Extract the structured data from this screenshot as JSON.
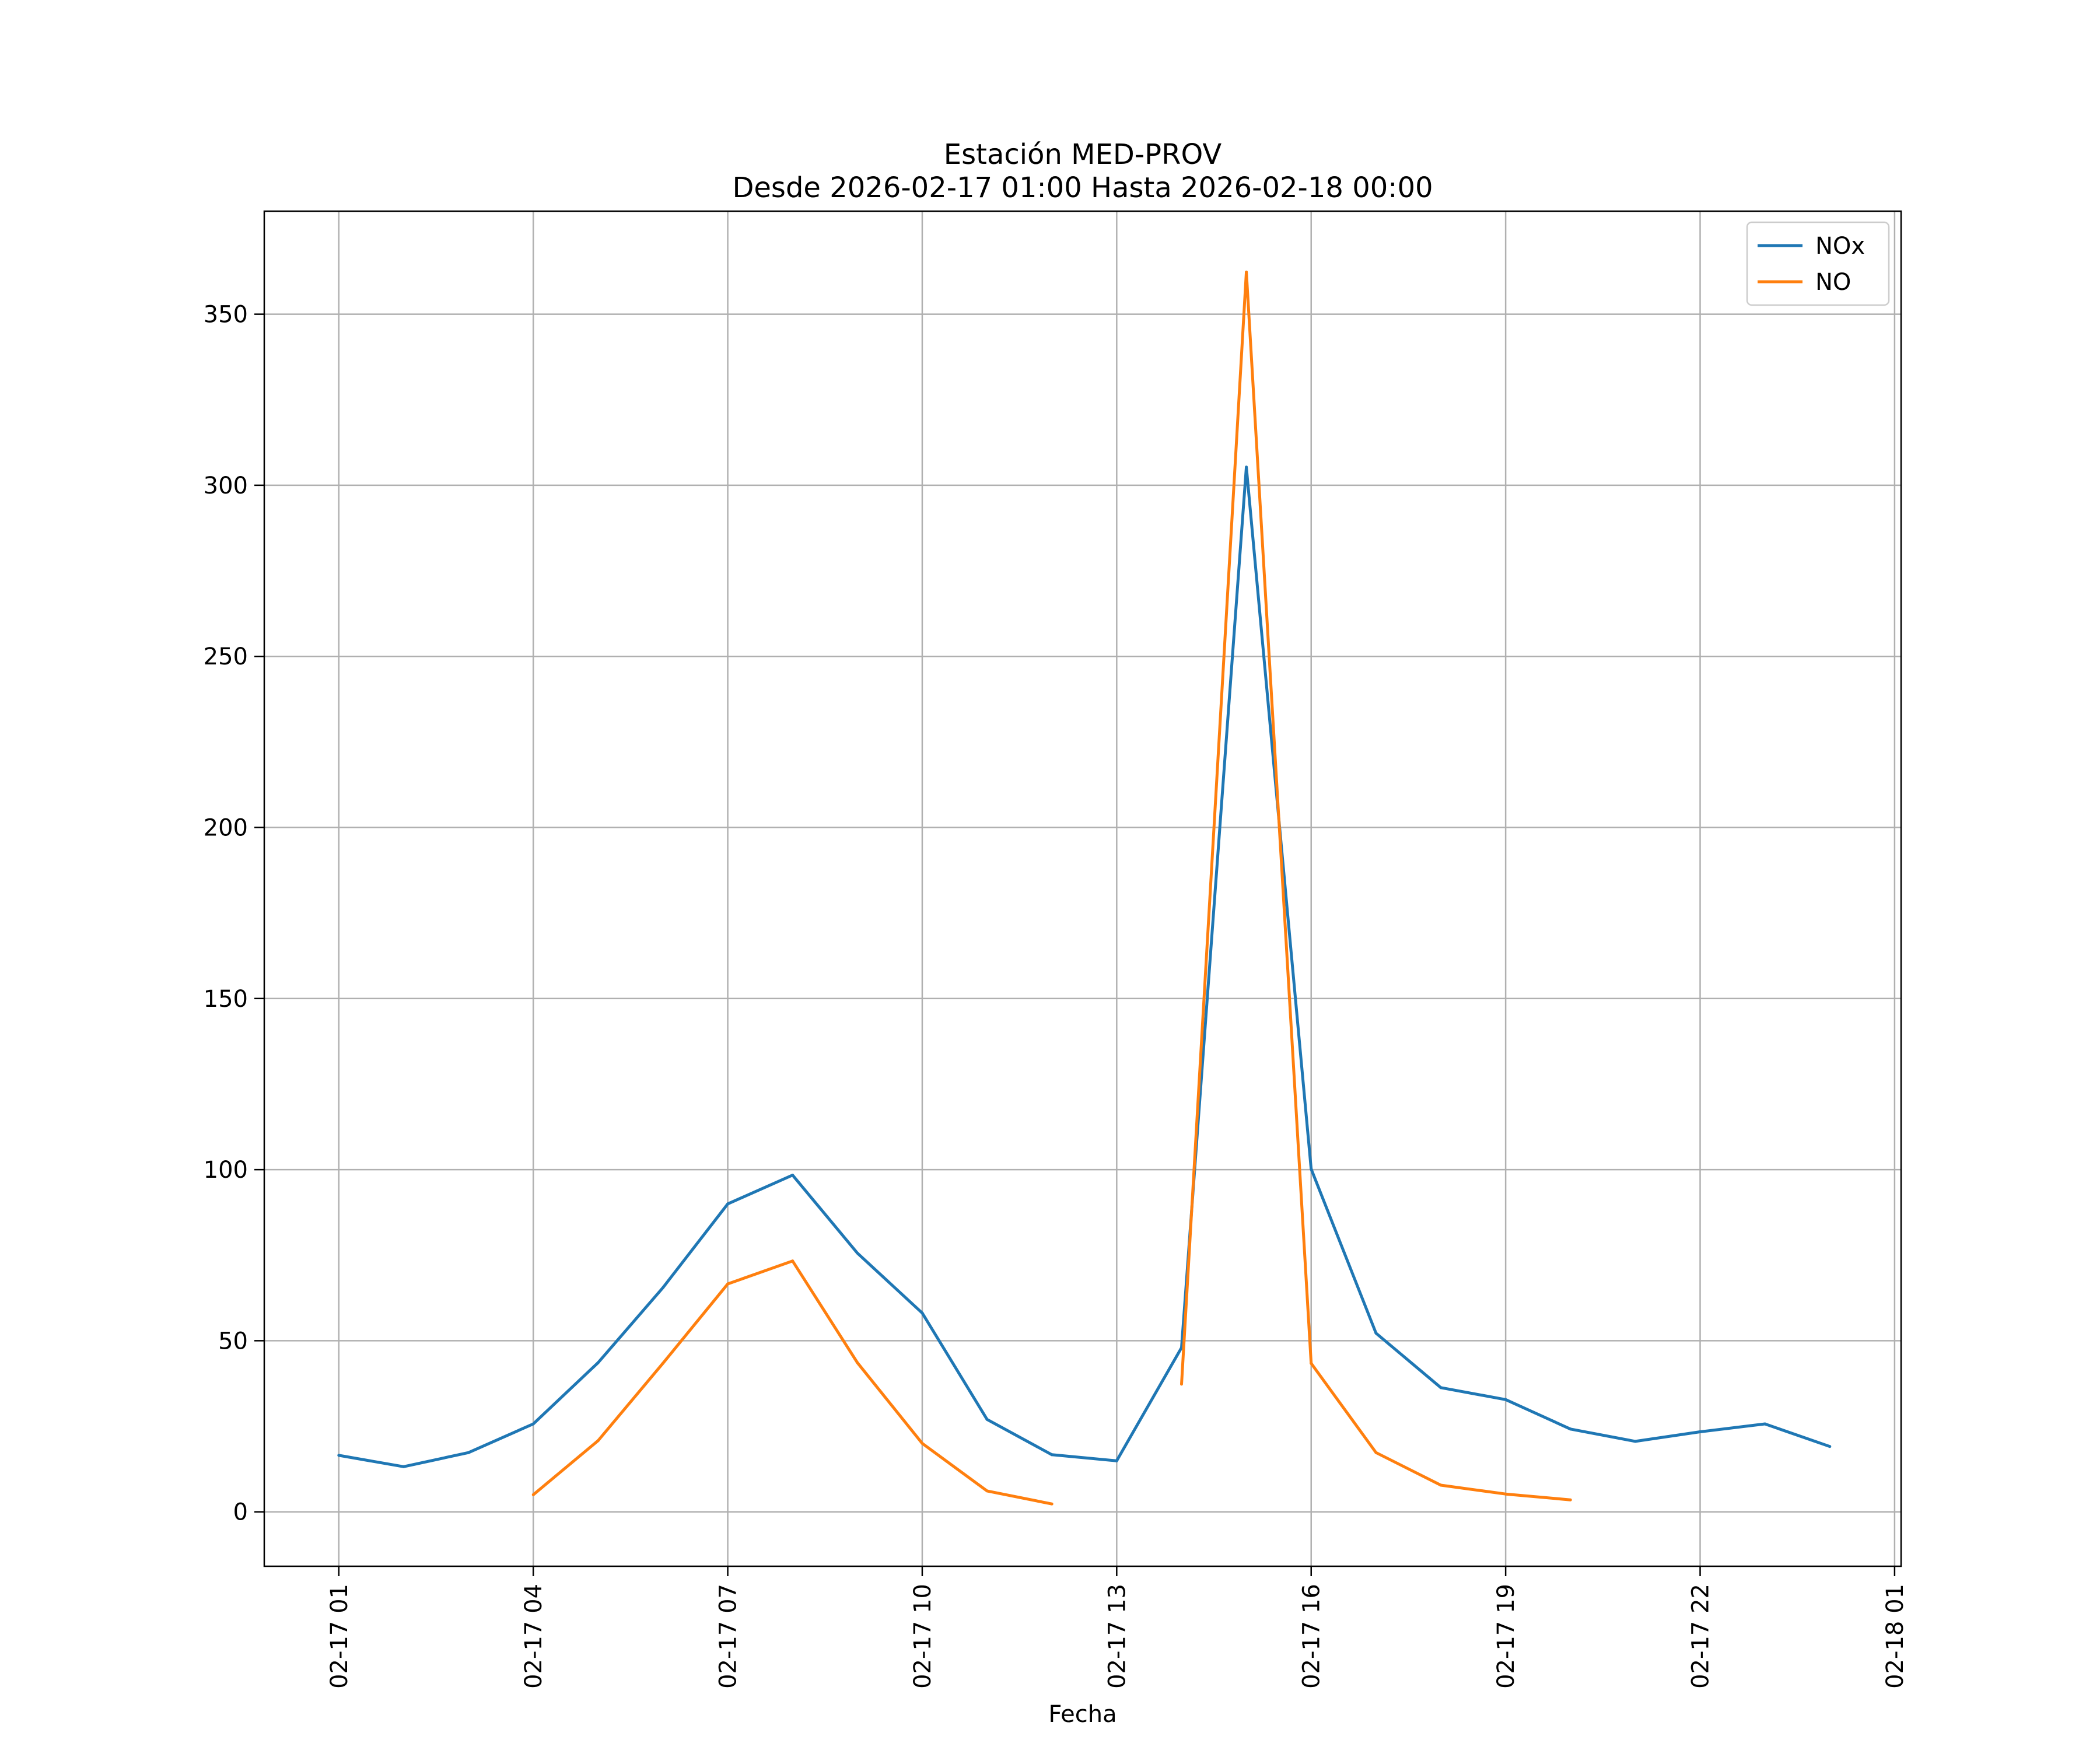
{
  "chart_data": {
    "type": "line",
    "title": "Estación MED-PROV",
    "subtitle": "Desde 2026-02-17 01:00 Hasta 2026-02-18 00:00",
    "xlabel": "Fecha",
    "ylabel": "",
    "x_axis": {
      "type": "datetime",
      "ticks": [
        {
          "x": "2026-02-17 01:00",
          "label": "02-17 01"
        },
        {
          "x": "2026-02-17 04:00",
          "label": "02-17 04"
        },
        {
          "x": "2026-02-17 07:00",
          "label": "02-17 07"
        },
        {
          "x": "2026-02-17 10:00",
          "label": "02-17 10"
        },
        {
          "x": "2026-02-17 13:00",
          "label": "02-17 13"
        },
        {
          "x": "2026-02-17 16:00",
          "label": "02-17 16"
        },
        {
          "x": "2026-02-17 19:00",
          "label": "02-17 19"
        },
        {
          "x": "2026-02-17 22:00",
          "label": "02-17 22"
        },
        {
          "x": "2026-02-18 01:00",
          "label": "02-18 01"
        }
      ],
      "xlim": [
        "2026-02-16 23:51",
        "2026-02-18 01:06"
      ]
    },
    "y_axis": {
      "ticks": [
        0,
        50,
        100,
        150,
        200,
        250,
        300,
        350
      ],
      "ylim": [
        -15.9,
        380.1
      ]
    },
    "grid": true,
    "legend": {
      "placement": "top-right"
    },
    "series": [
      {
        "name": "NOx",
        "color": "#1f77b4",
        "points": [
          [
            "2026-02-17 01:00",
            16.5
          ],
          [
            "2026-02-17 02:00",
            13.2
          ],
          [
            "2026-02-17 03:00",
            17.3
          ],
          [
            "2026-02-17 04:00",
            25.7
          ],
          [
            "2026-02-17 05:00",
            43.6
          ],
          [
            "2026-02-17 06:00",
            65.5
          ],
          [
            "2026-02-17 07:00",
            90.0
          ],
          [
            "2026-02-17 08:00",
            98.4
          ],
          [
            "2026-02-17 09:00",
            75.6
          ],
          [
            "2026-02-17 10:00",
            58.1
          ],
          [
            "2026-02-17 11:00",
            27.0
          ],
          [
            "2026-02-17 12:00",
            16.7
          ],
          [
            "2026-02-17 13:00",
            14.9
          ],
          [
            "2026-02-17 14:00",
            48.0
          ],
          [
            "2026-02-17 15:00",
            305.3
          ],
          [
            "2026-02-17 16:00",
            100.2
          ],
          [
            "2026-02-17 17:00",
            52.2
          ],
          [
            "2026-02-17 18:00",
            36.3
          ],
          [
            "2026-02-17 19:00",
            32.8
          ],
          [
            "2026-02-17 20:00",
            24.2
          ],
          [
            "2026-02-17 21:00",
            20.6
          ],
          [
            "2026-02-17 22:00",
            23.4
          ],
          [
            "2026-02-17 23:00",
            25.7
          ],
          [
            "2026-02-18 00:00",
            19.1
          ]
        ]
      },
      {
        "name": "NO",
        "color": "#ff7f0e",
        "points": [
          [
            "2026-02-17 04:00",
            5.0
          ],
          [
            "2026-02-17 05:00",
            20.8
          ],
          [
            "2026-02-17 06:00",
            43.4
          ],
          [
            "2026-02-17 07:00",
            66.6
          ],
          [
            "2026-02-17 08:00",
            73.3
          ],
          [
            "2026-02-17 09:00",
            43.6
          ],
          [
            "2026-02-17 10:00",
            20.0
          ],
          [
            "2026-02-17 11:00",
            6.1
          ],
          [
            "2026-02-17 12:00",
            2.3
          ],
          [
            "2026-02-17 14:00",
            37.3
          ],
          [
            "2026-02-17 15:00",
            362.3
          ],
          [
            "2026-02-17 16:00",
            43.4
          ],
          [
            "2026-02-17 17:00",
            17.3
          ],
          [
            "2026-02-17 18:00",
            7.8
          ],
          [
            "2026-02-17 19:00",
            5.2
          ],
          [
            "2026-02-17 20:00",
            3.5
          ]
        ]
      }
    ]
  }
}
